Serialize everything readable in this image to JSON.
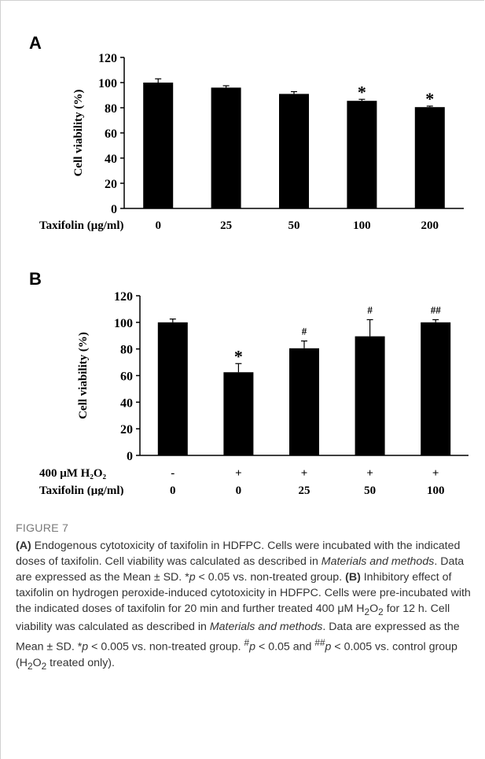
{
  "chart_data": [
    {
      "panel": "A",
      "type": "bar",
      "ylabel": "Cell viability (%)",
      "xlabel": "Taxifolin (μg/ml)",
      "categories": [
        "0",
        "25",
        "50",
        "100",
        "200"
      ],
      "values": [
        100,
        96,
        91,
        85.5,
        80.5
      ],
      "errors": [
        3,
        1.5,
        1.8,
        1.2,
        0.8
      ],
      "annotations": [
        "",
        "",
        "",
        "*",
        "*"
      ],
      "ylim": [
        0,
        120
      ],
      "yticks": [
        0,
        20,
        40,
        60,
        80,
        100,
        120
      ],
      "grid": false,
      "bar_color": "#000000"
    },
    {
      "panel": "B",
      "type": "bar",
      "ylabel": "Cell viability (%)",
      "rows": [
        {
          "label": "400 μM H₂O₂",
          "values": [
            "-",
            "+",
            "+",
            "+",
            "+"
          ]
        },
        {
          "label": "Taxifolin (μg/ml)",
          "values": [
            "0",
            "0",
            "25",
            "50",
            "100"
          ]
        }
      ],
      "values": [
        100,
        62.5,
        80.5,
        89.5,
        100
      ],
      "errors": [
        2.5,
        6.5,
        5.5,
        12.5,
        2
      ],
      "annotations": [
        "",
        "*",
        "#",
        "#",
        "##"
      ],
      "ylim": [
        0,
        120
      ],
      "yticks": [
        0,
        20,
        40,
        60,
        80,
        100,
        120
      ],
      "grid": false,
      "bar_color": "#000000"
    }
  ],
  "caption": {
    "title": "FIGURE 7",
    "text_html": "<b>(A)</b> Endogenous cytotoxicity of taxifolin in HDFPC. Cells were incubated with the indicated doses of taxifolin. Cell viability was calculated as described in <i>Materials and methods</i>. Data are expressed as the Mean ± SD. *<i>p</i> &lt; 0.05 vs. non-treated group. <b>(B)</b> Inhibitory effect of taxifolin on hydrogen peroxide-induced cytotoxicity in HDFPC. Cells were pre-incubated with the indicated doses of taxifolin for 20 min and further treated 400 μM H<sub>2</sub>O<sub>2</sub> for 12 h. Cell viability was calculated as described in <i>Materials and methods</i>. Data are expressed as the Mean ± SD. *<i>p</i> &lt; 0.005 vs. non-treated group. <sup>#</sup><i>p</i> &lt; 0.05 and <sup>##</sup><i>p</i> &lt; 0.005 vs. control group (H<sub>2</sub>O<sub>2</sub> treated only)."
  }
}
